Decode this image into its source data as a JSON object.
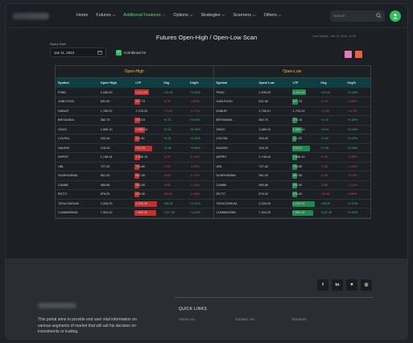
{
  "nav": {
    "items": [
      {
        "label": "Home",
        "active": false
      },
      {
        "label": "Futures ⌵",
        "active": false
      },
      {
        "label": "Additional Features ⌵",
        "active": true
      },
      {
        "label": "Options ⌵",
        "active": false
      },
      {
        "label": "Strategies ⌵",
        "active": false
      },
      {
        "label": "Scanners ⌵",
        "active": false
      },
      {
        "label": "Others ⌵",
        "active": false
      }
    ],
    "search_placeholder": "Search",
    "accent": "#62d26f"
  },
  "page": {
    "title": "Futures Open-High / Open-Low Scan",
    "last_updated": "Last Update : Jan 11, 2023, 11:36"
  },
  "controls": {
    "expiry_label": "Expiry Date",
    "expiry_value": "Jan 11, 2023",
    "combined_oi_label": "Combined OI",
    "combined_oi_checked": true
  },
  "tables": {
    "columns": [
      "Symbol",
      "Open/ High",
      "LTP",
      "Chg",
      "Chg%"
    ],
    "columns_low": [
      "Symbol",
      "Open/ Low",
      "LTP",
      "Chg",
      "Chg%"
    ],
    "high_title": "Open-High",
    "low_title": "Open-Low",
    "rows": [
      {
        "symbol": "PIIND",
        "open": "2,435.00",
        "ltp": "2,410.00",
        "chg": "+10.15",
        "pct": "+0.42%",
        "dir": "pos",
        "high_bar": 0.55,
        "low_bar": 0.55
      },
      {
        "symbol": "JUBLFOOD",
        "open": "531.90",
        "ltp": "527.75",
        "chg": "-9.70",
        "pct": "-1.80%",
        "dir": "neg",
        "high_bar": 0.12,
        "low_bar": 0.12
      },
      {
        "symbol": "DABUR",
        "open": "1,785.01",
        "ltp": "1,703.20",
        "chg": "-73.90",
        "pct": "-4.17%",
        "dir": "neg",
        "high_bar": 0,
        "low_bar": 0
      },
      {
        "symbol": "BRITANNIA",
        "open": "382.70",
        "ltp": "375.15",
        "chg": "+0.75",
        "pct": "+0.20%",
        "dir": "pos",
        "high_bar": 0.1,
        "low_bar": 0.1
      },
      {
        "symbol": "ONGC",
        "open": "1,589.10",
        "ltp": "1,585.14",
        "chg": "+3.24",
        "pct": "+0.24%",
        "dir": "pos",
        "high_bar": 0.35,
        "low_bar": 0.35
      },
      {
        "symbol": "COLPAL",
        "open": "153.40",
        "ltp": "111.30",
        "chg": "+0.25",
        "pct": "+0.22%",
        "dir": "pos",
        "high_bar": 0.05,
        "low_bar": 0.05
      },
      {
        "symbol": "NAUKRI",
        "open": "218.25",
        "ltp": "218.25",
        "chg": "+2.08",
        "pct": "+0.95%",
        "dir": "pos",
        "high_bar": 0.75,
        "low_bar": 0.75
      },
      {
        "symbol": "WIPRO",
        "open": "1,748.44",
        "ltp": "1,668.15",
        "chg": "-5.25",
        "pct": "-0.25%",
        "dir": "neg",
        "high_bar": 0.1,
        "low_bar": 0.1
      },
      {
        "symbol": "UBL",
        "open": "727.40",
        "ltp": "734.80",
        "chg": "-7.60",
        "pct": "-1.00%",
        "dir": "neg",
        "high_bar": 0.08,
        "low_bar": 0.08
      },
      {
        "symbol": "SUNPHARMA",
        "open": "961.00",
        "ltp": "867.55",
        "chg": "-6.60",
        "pct": "-0.74%",
        "dir": "neg",
        "high_bar": 0.08,
        "low_bar": 0.08
      },
      {
        "symbol": "CANBK",
        "open": "985.86",
        "ltp": "950.00",
        "chg": "-9.85",
        "pct": "-1.14%",
        "dir": "neg",
        "high_bar": 0.08,
        "low_bar": 0.08
      },
      {
        "symbol": "IRCTC",
        "open": "876.00",
        "ltp": "876.00",
        "chg": "-25.90",
        "pct": "-2.86%",
        "dir": "neg",
        "high_bar": 0.08,
        "low_bar": 0.08
      },
      {
        "symbol": "TATACONSUM",
        "open": "2,226.25",
        "ltp": "2,226.25",
        "chg": "+48.05",
        "pct": "+2.21%",
        "dir": "pos",
        "high_bar": 1.0,
        "low_bar": 1.0
      },
      {
        "symbol": "CUMMINSIND",
        "open": "7,304.20",
        "ltp": "7,880.30",
        "chg": "+137.35",
        "pct": "+1.92%",
        "dir": "pos",
        "high_bar": 0.95,
        "low_bar": 0.95
      }
    ]
  },
  "footer": {
    "description": "This portal aims to provide end user vital information on various segments of market that will aid his decision on investments or trading.",
    "quick_links_title": "QUICK LINKS",
    "links": [
      "About Us",
      "Contact Us",
      "Services"
    ],
    "social_icons": [
      "facebook-icon",
      "linkedin-icon",
      "twitter-icon",
      "instagram-icon"
    ]
  }
}
